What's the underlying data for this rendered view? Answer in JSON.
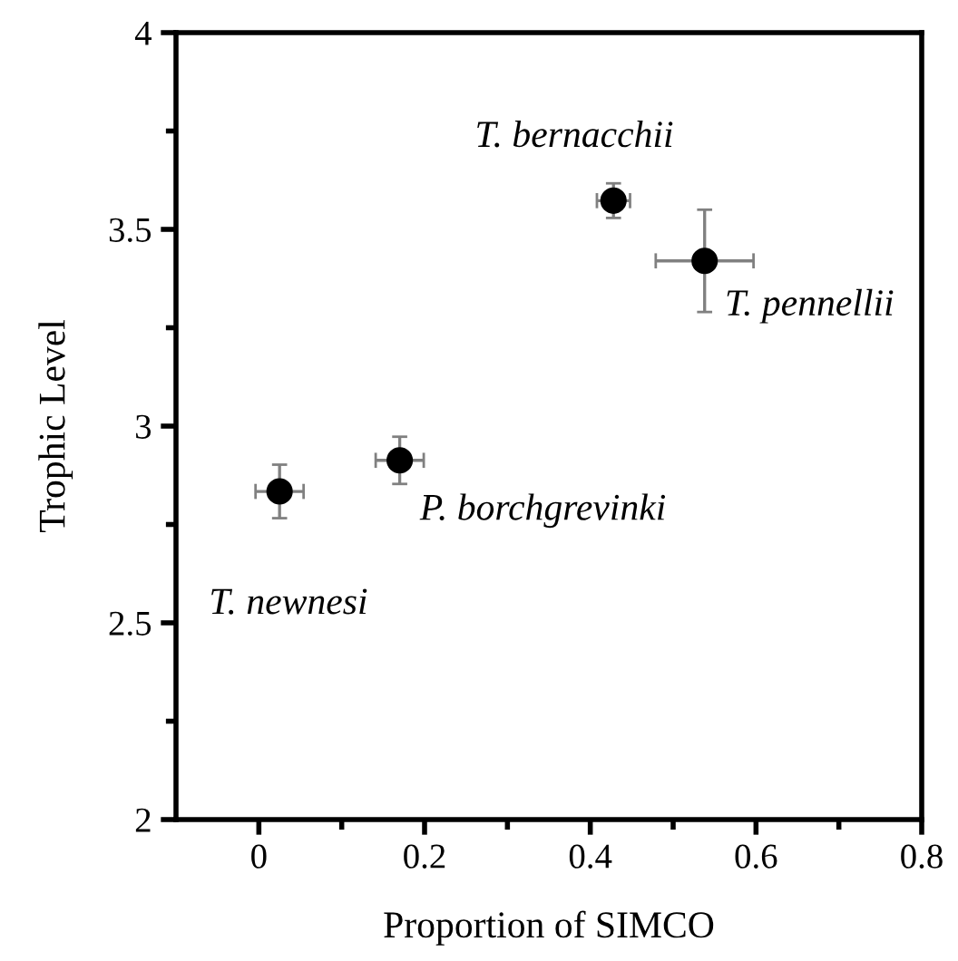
{
  "chart_data": {
    "type": "scatter",
    "xlabel": "Proportion of SIMCO",
    "ylabel": "Trophic Level",
    "x": [
      0.025,
      0.17,
      0.428,
      0.538
    ],
    "series": [
      {
        "color": "#000000",
        "values": [
          2.834,
          2.913,
          3.573,
          3.42
        ],
        "errors": [
          0.068,
          0.06,
          0.044,
          0.13
        ],
        "xerrors": [
          0.029,
          0.029,
          0.02,
          0.059
        ]
      }
    ],
    "marker": "circle",
    "grid": false,
    "legend": false,
    "xlim": [
      -0.1,
      0.8
    ],
    "xticks": [
      0,
      {
        "value": 0.1,
        "label": null
      },
      0.2,
      {
        "value": 0.3,
        "label": null
      },
      0.4,
      {
        "value": 0.5,
        "label": null
      },
      0.6,
      {
        "value": 0.7,
        "label": null
      },
      0.8
    ],
    "ylim": [
      2,
      4
    ],
    "yticks": [
      2,
      {
        "value": 2.25,
        "label": null
      },
      2.5,
      {
        "value": 2.75,
        "label": null
      },
      3,
      {
        "value": 3.25,
        "label": null
      },
      3.5,
      {
        "value": 3.75,
        "label": null
      },
      4
    ],
    "annotations": [
      {
        "text": "T. newnesi",
        "x": 0.025,
        "y": 2.834
      },
      {
        "text": "P. borchgrevinki",
        "x": 0.17,
        "y": 2.913
      },
      {
        "text": "T. bernacchii",
        "x": 0.428,
        "y": 3.573
      },
      {
        "text": "T. pennellii",
        "x": 0.538,
        "y": 3.42
      }
    ]
  }
}
